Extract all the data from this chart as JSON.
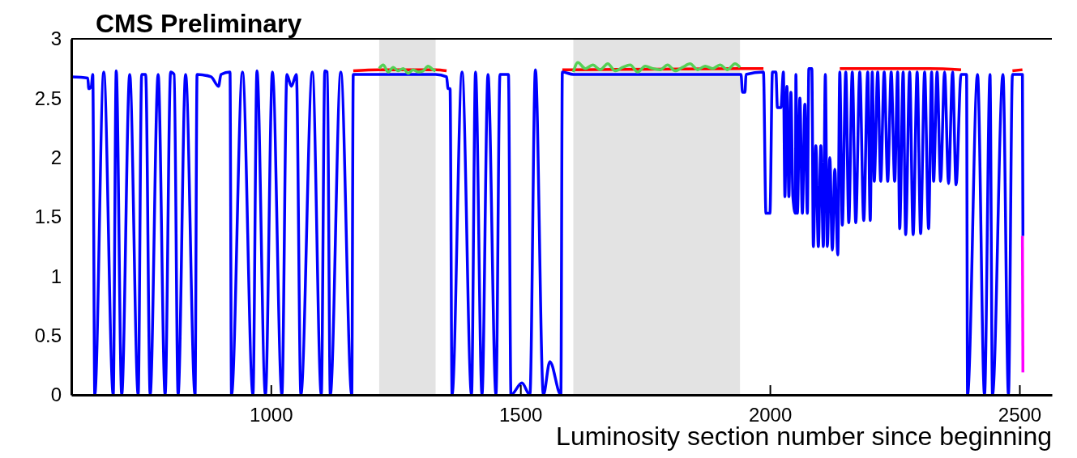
{
  "chart_data": {
    "type": "line",
    "title": "CMS Preliminary",
    "xlabel": "Luminosity section number since beginning",
    "xlim": [
      600,
      2565
    ],
    "xticks": [
      1000,
      1500,
      2000,
      2500
    ],
    "ylim": [
      0,
      3
    ],
    "yticks": [
      0,
      0.5,
      1,
      1.5,
      2,
      2.5,
      3
    ],
    "grid": false,
    "line_style": "solid",
    "marker": "none",
    "bands": [
      {
        "axis": "x",
        "from": 1217,
        "to": 1330,
        "color": "#e3e3e3"
      },
      {
        "axis": "x",
        "from": 1606,
        "to": 1940,
        "color": "#e3e3e3"
      }
    ],
    "series": [
      {
        "color": "#ff0000",
        "x": [
          1165,
          1217,
          1330,
          1352,
          1400,
          1584,
          1606,
          1940,
          1987,
          2000,
          2140,
          2200,
          2260,
          2320,
          2383,
          2400,
          2486,
          2506
        ],
        "values": [
          2.73,
          2.74,
          2.74,
          2.73,
          null,
          2.74,
          2.74,
          2.75,
          2.75,
          null,
          2.75,
          2.75,
          2.75,
          2.75,
          2.74,
          null,
          2.73,
          2.74
        ]
      },
      {
        "color": "#ff00ff",
        "x": [
          2506,
          2507
        ],
        "values": [
          1.34,
          0.19
        ]
      },
      {
        "color": "#0000ff",
        "x": [
          600,
          633,
          635,
          640,
          643,
          647,
          665,
          684,
          690,
          701,
          717,
          734,
          741,
          749,
          758,
          774,
          788,
          799,
          806,
          814,
          829,
          848,
          852,
          880,
          895,
          900,
          918,
          921,
          943,
          964,
          972,
          989,
          1003,
          1022,
          1032,
          1041,
          1051,
          1060,
          1083,
          1101,
          1108,
          1113,
          1119,
          1140,
          1162,
          1165,
          1217,
          1330,
          1352,
          1355,
          1359,
          1363,
          1383,
          1402,
          1410,
          1423,
          1435,
          1451,
          1459,
          1476,
          1481,
          1503,
          1519,
          1530,
          1546,
          1559,
          1581,
          1584,
          1606,
          1940,
          1942,
          1945,
          1950,
          1952,
          1987,
          1992,
          2000,
          2005,
          2012,
          2015,
          2022,
          2027,
          2030,
          2034,
          2038,
          2042,
          2046,
          2051,
          2052,
          2055,
          2060,
          2065,
          2070,
          2075,
          2078,
          2084,
          2087,
          2092,
          2097,
          2102,
          2107,
          2111,
          2115,
          2120,
          2125,
          2130,
          2136,
          2140,
          2145,
          2152,
          2158,
          2165,
          2172,
          2180,
          2188,
          2196,
          2201,
          2205,
          2209,
          2216,
          2222,
          2229,
          2236,
          2243,
          2250,
          2256,
          2260,
          2267,
          2272,
          2280,
          2287,
          2295,
          2302,
          2310,
          2318,
          2324,
          2328,
          2335,
          2342,
          2350,
          2358,
          2366,
          2373,
          2383,
          2392,
          2394,
          2396,
          2416,
          2430,
          2441,
          2446,
          2467,
          2478,
          2486,
          2506,
          2507
        ],
        "values": [
          2.68,
          2.67,
          2.58,
          2.6,
          2.7,
          0,
          2.72,
          0,
          2.73,
          0,
          2.7,
          0,
          2.7,
          2.7,
          0,
          2.7,
          0,
          2.72,
          2.7,
          0,
          2.7,
          0,
          2.7,
          2.68,
          2.6,
          2.7,
          2.72,
          0,
          2.72,
          0,
          2.73,
          0,
          2.72,
          0,
          2.7,
          2.6,
          2.7,
          0,
          2.72,
          0,
          2.73,
          2.72,
          0,
          2.72,
          0,
          2.7,
          2.7,
          2.7,
          2.68,
          2.58,
          2.58,
          0,
          2.72,
          0,
          2.72,
          0,
          2.7,
          0,
          2.7,
          2.7,
          0,
          0.1,
          0,
          2.74,
          0,
          0.28,
          0,
          2.72,
          2.7,
          2.7,
          2.7,
          2.55,
          2.55,
          2.7,
          2.72,
          1.53,
          1.53,
          2.72,
          2.72,
          2.42,
          2.42,
          2.72,
          1.67,
          2.6,
          1.67,
          2.55,
          1.67,
          1.53,
          2.7,
          1.53,
          2.5,
          1.53,
          2.45,
          1.53,
          2.75,
          2.75,
          1.25,
          2.1,
          1.25,
          2.1,
          1.25,
          2.7,
          1.25,
          2.0,
          1.22,
          1.9,
          1.18,
          2.72,
          1.43,
          2.72,
          1.45,
          2.72,
          1.45,
          2.72,
          1.47,
          2.72,
          1.47,
          2.72,
          1.8,
          2.72,
          1.8,
          2.72,
          1.8,
          2.72,
          1.8,
          2.72,
          1.4,
          2.72,
          1.35,
          2.72,
          1.35,
          2.72,
          1.36,
          2.72,
          1.4,
          2.72,
          1.8,
          2.72,
          1.8,
          2.72,
          1.78,
          2.72,
          1.77,
          2.7,
          2.7,
          2.7,
          0,
          2.7,
          0,
          2.7,
          0,
          2.7,
          0,
          2.7,
          2.7,
          1.34
        ]
      },
      {
        "color": "#55d155",
        "x": [
          1217,
          1225,
          1235,
          1245,
          1255,
          1265,
          1275,
          1285,
          1295,
          1305,
          1315,
          1325,
          1330,
          1400,
          1606,
          1615,
          1630,
          1645,
          1660,
          1675,
          1690,
          1705,
          1720,
          1735,
          1750,
          1765,
          1780,
          1795,
          1810,
          1825,
          1840,
          1855,
          1870,
          1885,
          1900,
          1915,
          1930,
          1940
        ],
        "values": [
          2.75,
          2.78,
          2.72,
          2.76,
          2.73,
          2.75,
          2.71,
          2.74,
          2.72,
          2.73,
          2.77,
          2.74,
          2.73,
          null,
          2.72,
          2.8,
          2.75,
          2.78,
          2.74,
          2.79,
          2.73,
          2.76,
          2.78,
          2.72,
          2.77,
          2.75,
          2.74,
          2.78,
          2.73,
          2.76,
          2.79,
          2.74,
          2.77,
          2.75,
          2.78,
          2.74,
          2.79,
          2.76
        ]
      }
    ]
  }
}
